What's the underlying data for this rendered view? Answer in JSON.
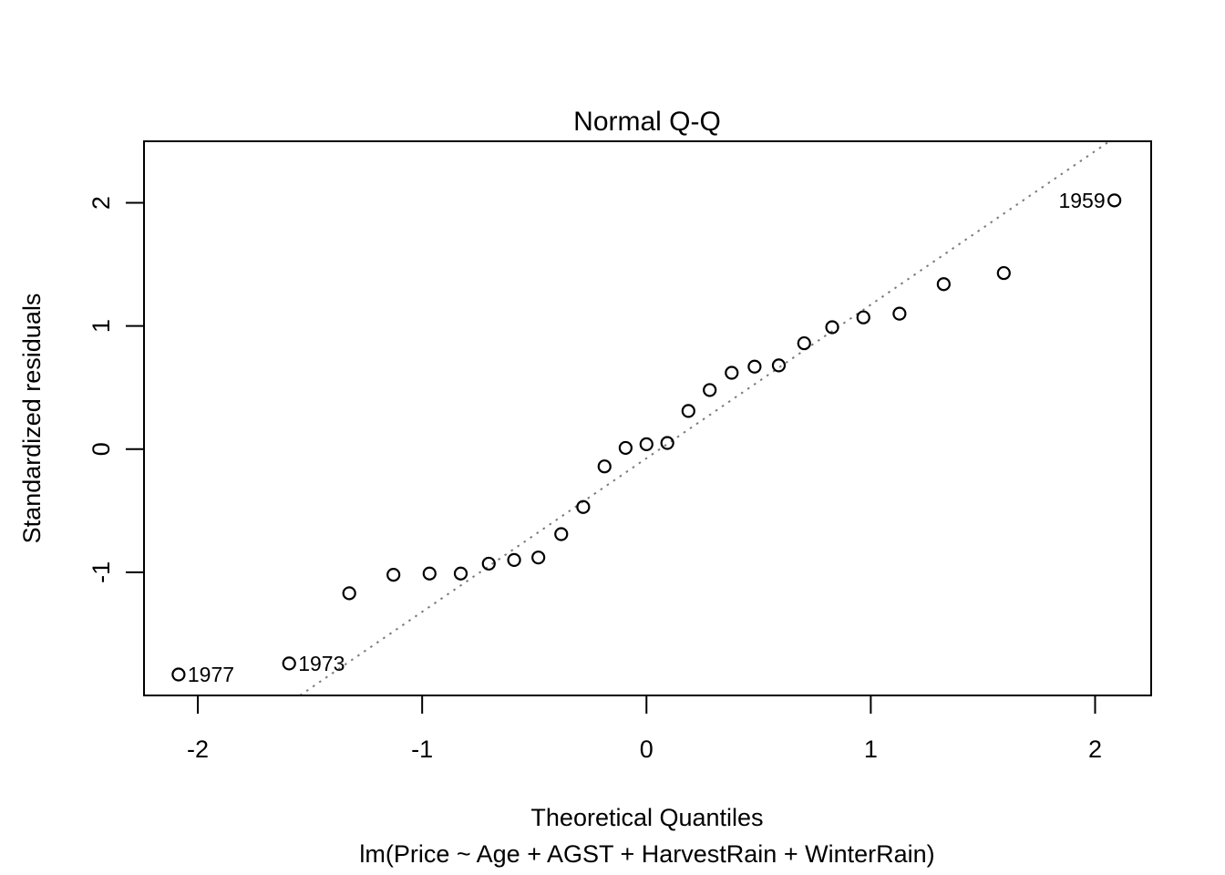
{
  "figure": {
    "background": "#ffffff",
    "foreground": "#000000"
  },
  "chart_data": {
    "type": "scatter",
    "title": "Normal Q-Q",
    "xlabel": "Theoretical Quantiles",
    "sublabel": "lm(Price ~ Age + AGST + HarvestRain + WinterRain)",
    "ylabel": "Standardized residuals",
    "xlim": [
      -2.24,
      2.25
    ],
    "ylim": [
      -2.0,
      2.5
    ],
    "x_ticks": [
      -2,
      -1,
      0,
      1,
      2
    ],
    "y_ticks": [
      -1,
      0,
      1,
      2
    ],
    "grid": false,
    "marker": {
      "shape": "open-circle",
      "color": "#000000",
      "radius_px": 6.5,
      "stroke_px": 2.2
    },
    "points": {
      "x": [
        -2.086,
        -1.593,
        -1.325,
        -1.128,
        -0.967,
        -0.828,
        -0.703,
        -0.59,
        -0.482,
        -0.38,
        -0.282,
        -0.187,
        -0.093,
        0.0,
        0.093,
        0.187,
        0.282,
        0.38,
        0.482,
        0.59,
        0.703,
        0.828,
        0.967,
        1.128,
        1.325,
        1.593,
        2.086
      ],
      "y": [
        -1.83,
        -1.74,
        -1.17,
        -1.02,
        -1.01,
        -1.01,
        -0.93,
        -0.9,
        -0.88,
        -0.69,
        -0.47,
        -0.14,
        0.01,
        0.04,
        0.05,
        0.31,
        0.48,
        0.62,
        0.67,
        0.68,
        0.86,
        0.99,
        1.07,
        1.1,
        1.34,
        1.43,
        2.02
      ]
    },
    "point_labels": [
      {
        "text": "1977",
        "x": -2.086,
        "y": -1.83,
        "side": "right"
      },
      {
        "text": "1973",
        "x": -1.593,
        "y": -1.74,
        "side": "right"
      },
      {
        "text": "1959",
        "x": 2.086,
        "y": 2.02,
        "side": "left"
      }
    ],
    "reference_line": {
      "slope": 1.247,
      "intercept": -0.074,
      "style": "dotted",
      "color": "#7a7a7a"
    }
  }
}
